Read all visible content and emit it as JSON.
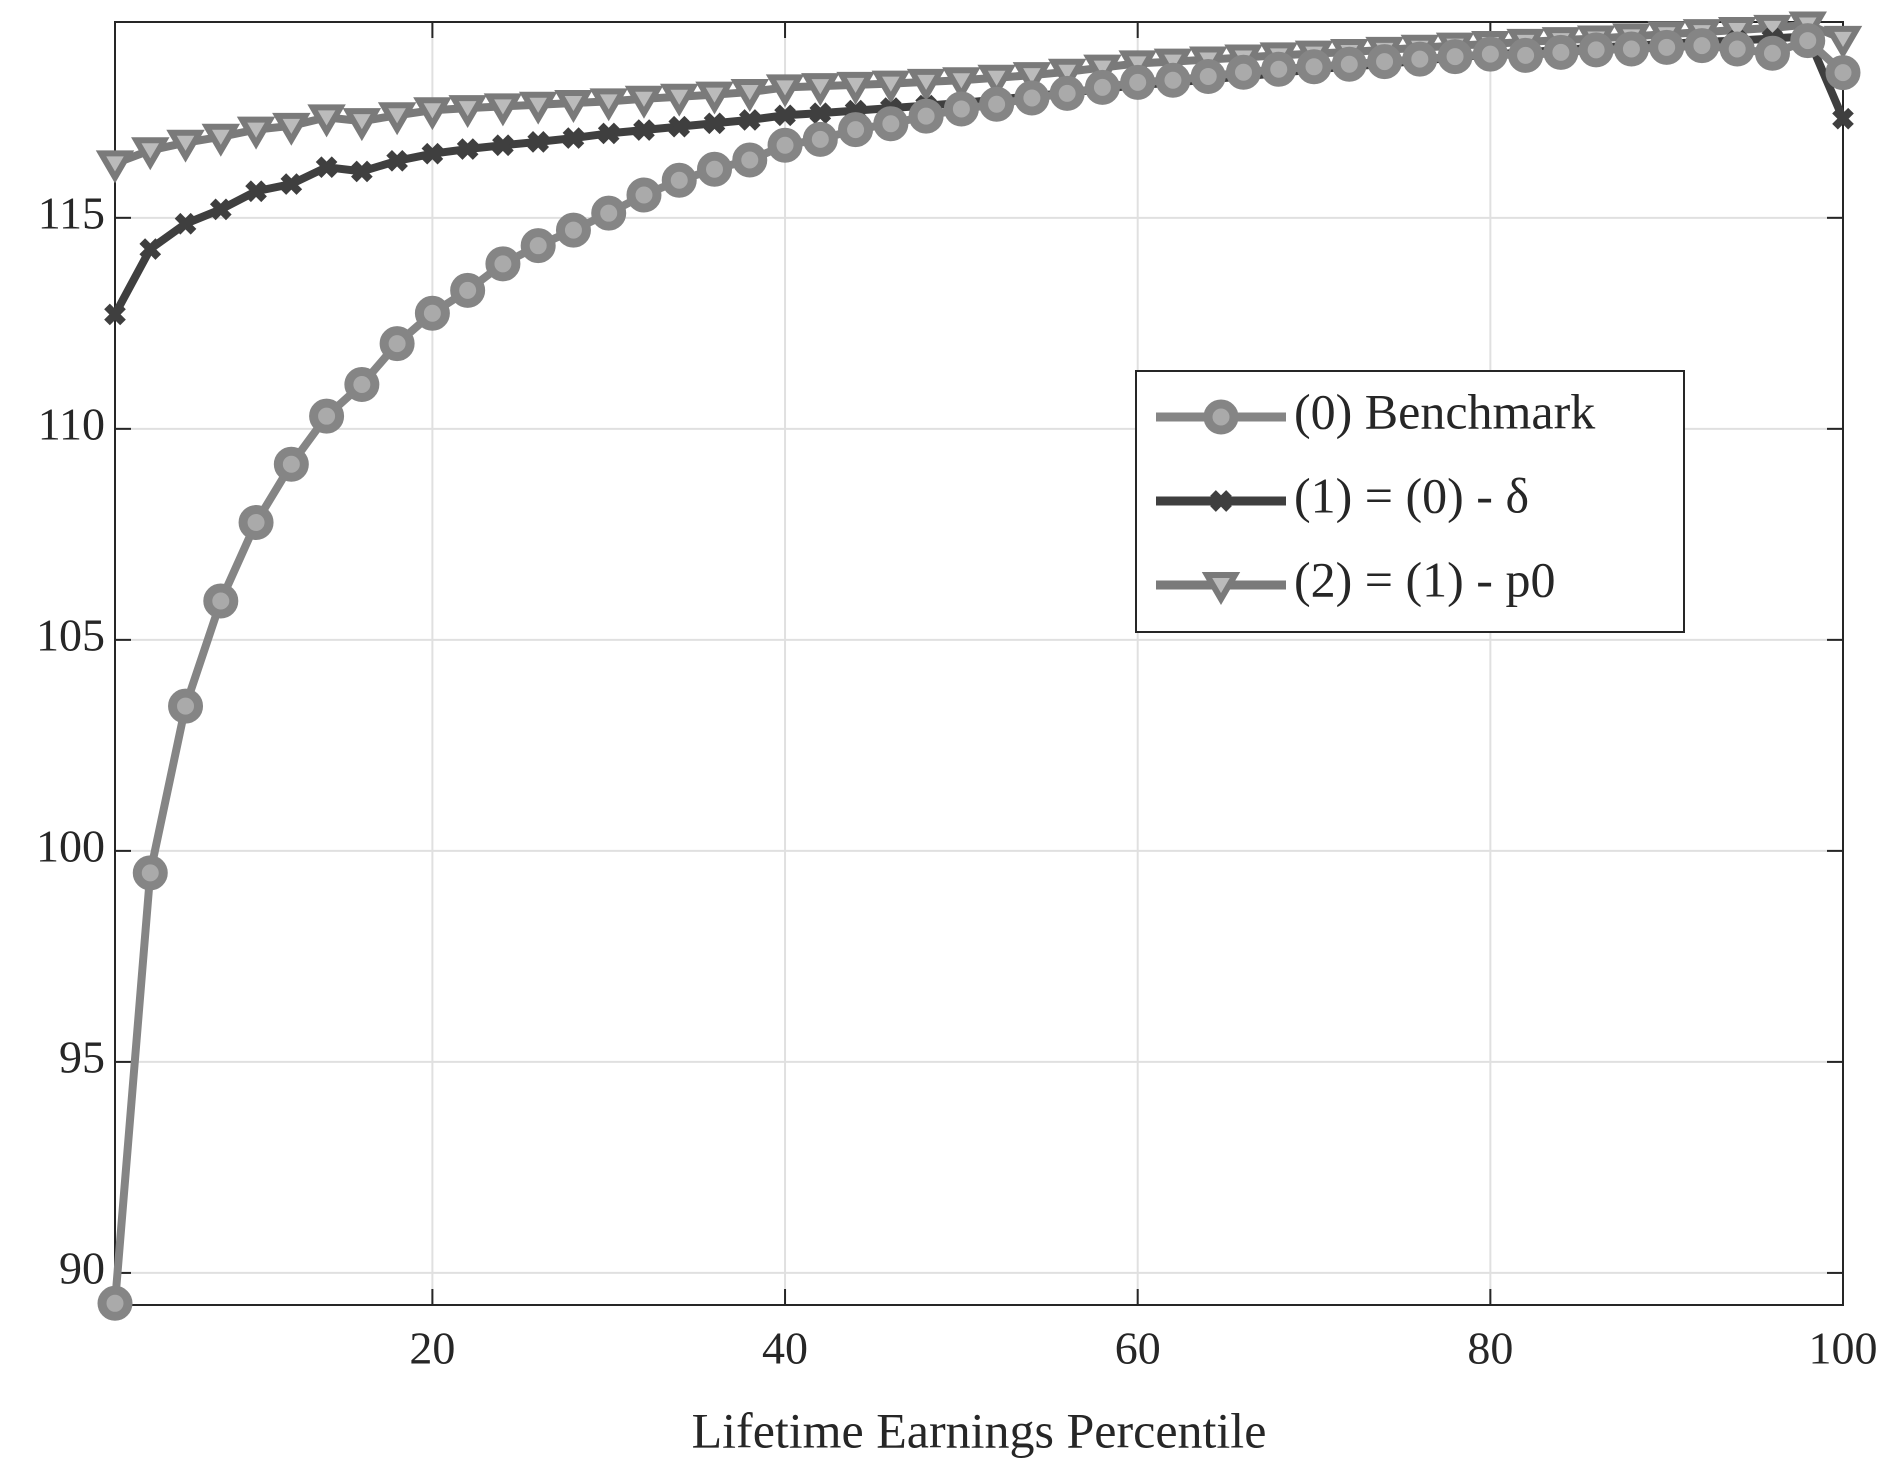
{
  "chart_data": {
    "type": "line",
    "xlabel": "Lifetime Earnings Percentile",
    "x": [
      2,
      4,
      6,
      8,
      10,
      12,
      14,
      16,
      18,
      20,
      22,
      24,
      26,
      28,
      30,
      32,
      34,
      36,
      38,
      40,
      42,
      44,
      46,
      48,
      50,
      52,
      54,
      56,
      58,
      60,
      62,
      64,
      66,
      68,
      70,
      72,
      74,
      76,
      78,
      80,
      82,
      84,
      86,
      88,
      90,
      92,
      94,
      96,
      98,
      100
    ],
    "series": [
      {
        "name": "(0) Benchmark",
        "color": "#858585",
        "marker": "o",
        "values": [
          89.28,
          99.48,
          103.43,
          105.92,
          107.78,
          109.16,
          110.3,
          111.05,
          112.02,
          112.74,
          113.28,
          113.91,
          114.34,
          114.71,
          115.11,
          115.54,
          115.89,
          116.15,
          116.37,
          116.72,
          116.86,
          117.09,
          117.23,
          117.41,
          117.58,
          117.69,
          117.84,
          117.95,
          118.09,
          118.21,
          118.26,
          118.35,
          118.45,
          118.52,
          118.58,
          118.64,
          118.7,
          118.76,
          118.82,
          118.88,
          118.85,
          118.92,
          118.98,
          119.0,
          119.04,
          119.08,
          119.0,
          118.9,
          119.2,
          118.44
        ]
      },
      {
        "name": "(1) = (0) - δ",
        "color": "#3f3f3f",
        "marker": "x",
        "values": [
          112.71,
          114.26,
          114.86,
          115.2,
          115.63,
          115.8,
          116.2,
          116.1,
          116.35,
          116.52,
          116.63,
          116.72,
          116.8,
          116.89,
          117.0,
          117.08,
          117.16,
          117.24,
          117.32,
          117.43,
          117.48,
          117.54,
          117.6,
          117.66,
          117.72,
          117.8,
          117.88,
          117.96,
          118.05,
          118.15,
          118.2,
          118.28,
          118.35,
          118.43,
          118.52,
          118.58,
          118.65,
          118.72,
          118.8,
          118.87,
          118.92,
          118.98,
          119.03,
          119.08,
          119.12,
          119.17,
          119.2,
          119.25,
          119.3,
          117.35
        ]
      },
      {
        "name": "(2) = (1) - p0",
        "color": "#7a7a7a",
        "marker": "v",
        "values": [
          116.29,
          116.6,
          116.78,
          116.92,
          117.09,
          117.18,
          117.38,
          117.29,
          117.43,
          117.55,
          117.6,
          117.64,
          117.68,
          117.72,
          117.76,
          117.82,
          117.87,
          117.92,
          117.98,
          118.09,
          118.12,
          118.15,
          118.18,
          118.22,
          118.26,
          118.32,
          118.38,
          118.46,
          118.56,
          118.66,
          118.7,
          118.75,
          118.8,
          118.85,
          118.89,
          118.93,
          118.98,
          119.03,
          119.08,
          119.12,
          119.17,
          119.21,
          119.25,
          119.3,
          119.35,
          119.4,
          119.45,
          119.5,
          119.58,
          119.24
        ]
      }
    ],
    "xlim": [
      2,
      100
    ],
    "xticks": [
      20,
      40,
      60,
      80,
      100
    ],
    "ylim": [
      89.24,
      119.64
    ],
    "yticks": [
      90,
      95,
      100,
      105,
      110,
      115
    ],
    "grid": true
  }
}
